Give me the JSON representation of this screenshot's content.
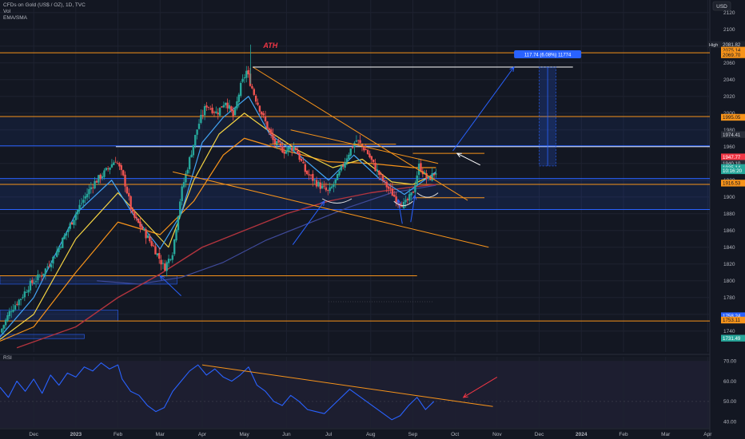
{
  "legend": {
    "symbol": "CFDs on Gold (US$ / OZ), 1D, TVC",
    "vol": "Vol",
    "indicator": "EMA/SMA"
  },
  "currency": "USD",
  "high_label": "High",
  "ath_label": "ATH",
  "rsi_label": "RSI",
  "measure_label": "117.74 (6.08%) 11774",
  "chart_data": [
    {
      "type": "candlestick",
      "title": "CFDs on Gold (US$ / OZ), 1D, TVC",
      "y_range": [
        1715,
        2135
      ],
      "y_ticks": [
        1740,
        1760,
        1780,
        1800,
        1820,
        1840,
        1860,
        1880,
        1900,
        1920,
        1940,
        1960,
        1980,
        2000,
        2020,
        2040,
        2060,
        2080,
        2100,
        2120
      ],
      "x_labels": [
        "Dec",
        "2023",
        "Feb",
        "Mar",
        "Apr",
        "May",
        "Jun",
        "Jul",
        "Aug",
        "Sep",
        "Oct",
        "Nov",
        "Dec",
        "2024",
        "Feb",
        "Mar",
        "Apr"
      ],
      "x_label_months": [
        0,
        1,
        2,
        3,
        4,
        5,
        6,
        7,
        8,
        9,
        10,
        11,
        12,
        13,
        14,
        15,
        16
      ],
      "x_range_months": [
        -0.8,
        16.05
      ],
      "grid": true,
      "price_path": [
        [
          -0.8,
          1738
        ],
        [
          -0.55,
          1765
        ],
        [
          -0.3,
          1780
        ],
        [
          -0.1,
          1795
        ],
        [
          0.2,
          1808
        ],
        [
          0.5,
          1830
        ],
        [
          0.8,
          1860
        ],
        [
          1.1,
          1890
        ],
        [
          1.4,
          1915
        ],
        [
          1.7,
          1930
        ],
        [
          1.95,
          1945
        ],
        [
          2.15,
          1920
        ],
        [
          2.35,
          1878
        ],
        [
          2.6,
          1860
        ],
        [
          2.85,
          1840
        ],
        [
          3.1,
          1815
        ],
        [
          3.3,
          1835
        ],
        [
          3.5,
          1905
        ],
        [
          3.7,
          1945
        ],
        [
          3.9,
          1985
        ],
        [
          4.1,
          2010
        ],
        [
          4.35,
          2000
        ],
        [
          4.55,
          2015
        ],
        [
          4.75,
          1995
        ],
        [
          4.9,
          2030
        ],
        [
          5.05,
          2050
        ],
        [
          5.25,
          2020
        ],
        [
          5.45,
          1995
        ],
        [
          5.7,
          1965
        ],
        [
          5.95,
          1955
        ],
        [
          6.2,
          1960
        ],
        [
          6.45,
          1930
        ],
        [
          6.75,
          1915
        ],
        [
          7.0,
          1905
        ],
        [
          7.2,
          1922
        ],
        [
          7.45,
          1950
        ],
        [
          7.65,
          1968
        ],
        [
          7.9,
          1955
        ],
        [
          8.1,
          1935
        ],
        [
          8.35,
          1915
        ],
        [
          8.6,
          1898
        ],
        [
          8.8,
          1890
        ],
        [
          9.0,
          1905
        ],
        [
          9.15,
          1938
        ],
        [
          9.35,
          1920
        ],
        [
          9.55,
          1930
        ]
      ],
      "ema_fast": [
        [
          -0.8,
          1733
        ],
        [
          0,
          1780
        ],
        [
          1,
          1880
        ],
        [
          1.85,
          1920
        ],
        [
          2.35,
          1880
        ],
        [
          3.0,
          1838
        ],
        [
          3.5,
          1880
        ],
        [
          4.0,
          1965
        ],
        [
          4.5,
          1995
        ],
        [
          5.1,
          2020
        ],
        [
          5.6,
          1975
        ],
        [
          6.3,
          1950
        ],
        [
          7.0,
          1920
        ],
        [
          7.6,
          1950
        ],
        [
          8.2,
          1922
        ],
        [
          8.8,
          1903
        ],
        [
          9.55,
          1930
        ]
      ],
      "ema_mid": [
        [
          -0.8,
          1730
        ],
        [
          0,
          1760
        ],
        [
          1,
          1850
        ],
        [
          2.0,
          1905
        ],
        [
          2.6,
          1872
        ],
        [
          3.2,
          1840
        ],
        [
          3.8,
          1920
        ],
        [
          4.4,
          1975
        ],
        [
          5.0,
          2000
        ],
        [
          5.6,
          1978
        ],
        [
          6.3,
          1955
        ],
        [
          7.1,
          1935
        ],
        [
          7.8,
          1945
        ],
        [
          8.5,
          1918
        ],
        [
          9.0,
          1915
        ],
        [
          9.55,
          1928
        ]
      ],
      "ema_slow": [
        [
          -0.8,
          1728
        ],
        [
          0,
          1745
        ],
        [
          1,
          1810
        ],
        [
          2.0,
          1870
        ],
        [
          3.0,
          1855
        ],
        [
          3.8,
          1895
        ],
        [
          4.5,
          1950
        ],
        [
          5.0,
          1970
        ],
        [
          6.0,
          1955
        ],
        [
          7.0,
          1942
        ],
        [
          8.0,
          1940
        ],
        [
          9.0,
          1935
        ],
        [
          9.55,
          1935
        ]
      ],
      "sma_200": [
        [
          -0.4,
          1720
        ],
        [
          1,
          1745
        ],
        [
          2,
          1780
        ],
        [
          3,
          1808
        ],
        [
          4,
          1840
        ],
        [
          5,
          1860
        ],
        [
          6,
          1880
        ],
        [
          7,
          1895
        ],
        [
          8,
          1905
        ],
        [
          9,
          1912
        ],
        [
          9.55,
          1915
        ]
      ],
      "sma_long": [
        [
          1.5,
          1800
        ],
        [
          2.5,
          1796
        ],
        [
          3.5,
          1804
        ],
        [
          4.5,
          1822
        ],
        [
          5.5,
          1848
        ],
        [
          6.5,
          1868
        ],
        [
          7.5,
          1888
        ],
        [
          8.5,
          1905
        ],
        [
          9.55,
          1914
        ]
      ],
      "horizontal_levels": [
        {
          "y": 2072,
          "x0": -0.8,
          "x1": 16.05,
          "color": "#f7931a"
        },
        {
          "y": 1996,
          "x0": -0.8,
          "x1": 16.05,
          "color": "#f7931a"
        },
        {
          "y": 1960,
          "x0": 1.95,
          "x1": 16.05,
          "color": "#ffffff"
        },
        {
          "y": 1952,
          "x0": 9.0,
          "x1": 10.7,
          "color": "#f7931a"
        },
        {
          "y": 1961,
          "x0": -0.8,
          "x1": 16.05,
          "color": "#2962ff"
        },
        {
          "y": 1922,
          "x0": -0.8,
          "x1": 16.05,
          "color": "#2962ff"
        },
        {
          "y": 1915,
          "x0": -0.8,
          "x1": 16.05,
          "color": "#f7931a"
        },
        {
          "y": 1899,
          "x0": 9.0,
          "x1": 10.7,
          "color": "#f7931a"
        },
        {
          "y": 1885,
          "x0": 7.0,
          "x1": 11.0,
          "color": "#f7931a"
        },
        {
          "y": 1885,
          "x0": -0.8,
          "x1": 16.05,
          "color": "#2962ff"
        },
        {
          "y": 1806,
          "x0": -0.8,
          "x1": 9.1,
          "color": "#f7931a"
        },
        {
          "y": 1752,
          "x0": -0.8,
          "x1": 16.05,
          "color": "#f7931a"
        }
      ],
      "trend_lines": [
        {
          "from": [
            5.2,
            2055
          ],
          "to": [
            10.3,
            1896
          ],
          "color": "#f7931a"
        },
        {
          "from": [
            5.2,
            2055
          ],
          "to": [
            12.8,
            2055
          ],
          "color": "#ffffff"
        },
        {
          "from": [
            3.3,
            1930
          ],
          "to": [
            10.8,
            1840
          ],
          "color": "#f7931a"
        },
        {
          "from": [
            5.6,
            1963
          ],
          "to": [
            8.6,
            1963
          ],
          "color": "#f7931a"
        },
        {
          "from": [
            6.1,
            1980
          ],
          "to": [
            9.6,
            1940
          ],
          "color": "#f7931a"
        }
      ],
      "arrows": [
        {
          "from": [
            9.95,
            1955
          ],
          "to": [
            11.4,
            2055
          ],
          "color": "#2962ff"
        },
        {
          "from": [
            10.6,
            1938
          ],
          "to": [
            10.05,
            1952
          ],
          "color": "#ffffff"
        },
        {
          "from": [
            6.15,
            1843
          ],
          "to": [
            6.9,
            1895
          ],
          "color": "#2962ff"
        },
        {
          "from": [
            3.5,
            1782
          ],
          "to": [
            3.0,
            1806
          ],
          "color": "#2962ff"
        },
        {
          "from": [
            8.75,
            1868
          ],
          "to": [
            8.65,
            1897
          ],
          "color": "#2962ff"
        },
        {
          "from": [
            8.95,
            1870
          ],
          "to": [
            9.05,
            1902
          ],
          "color": "#2962ff"
        }
      ],
      "measure_box": {
        "x0": 12.0,
        "x1": 12.4,
        "y0": 1937,
        "y1": 2055
      },
      "price_labels": [
        {
          "text": "2081.82",
          "y": 2081.82,
          "bg": "#1e222d",
          "fg": "#d1d4dc"
        },
        {
          "text": "2075.14",
          "y": 2075.14,
          "bg": "#f7931a",
          "fg": "#131722"
        },
        {
          "text": "2069.70",
          "y": 2069.7,
          "bg": "#f7931a",
          "fg": "#131722"
        },
        {
          "text": "1995.05",
          "y": 1995.05,
          "bg": "#f7931a",
          "fg": "#131722"
        },
        {
          "text": "1974.41",
          "y": 1974.41,
          "bg": "#2a2e39",
          "fg": "#d1d4dc"
        },
        {
          "text": "1947.77",
          "y": 1947.77,
          "bg": "#f23645",
          "fg": "#ffffff"
        },
        {
          "text": "1940.10",
          "y": 1940.1,
          "bg": "#2a2e39",
          "fg": "#d1d4dc"
        },
        {
          "text": "1935.14",
          "y": 1935.14,
          "bg": "#26a69a",
          "fg": "#ffffff"
        },
        {
          "text": "10:16:20",
          "y": 1931.3,
          "bg": "#26a69a",
          "fg": "#ffffff"
        },
        {
          "text": "1916.53",
          "y": 1916.53,
          "bg": "#f7931a",
          "fg": "#131722"
        },
        {
          "text": "1758.24",
          "y": 1758.24,
          "bg": "#2962ff",
          "fg": "#ffffff"
        },
        {
          "text": "1753.11",
          "y": 1753.11,
          "bg": "#f7931a",
          "fg": "#131722"
        },
        {
          "text": "1731.49",
          "y": 1731.49,
          "bg": "#26a69a",
          "fg": "#ffffff"
        }
      ]
    },
    {
      "type": "line",
      "title": "RSI",
      "y_range": [
        37,
        72
      ],
      "y_ticks": [
        40,
        50,
        60,
        70
      ],
      "ref_line": 50,
      "series": [
        {
          "values": [
            [
              -0.8,
              57
            ],
            [
              -0.6,
              52
            ],
            [
              -0.4,
              60
            ],
            [
              -0.2,
              55
            ],
            [
              0,
              61
            ],
            [
              0.2,
              54
            ],
            [
              0.4,
              63
            ],
            [
              0.6,
              58
            ],
            [
              0.8,
              64
            ],
            [
              1.0,
              62
            ],
            [
              1.2,
              67
            ],
            [
              1.4,
              65
            ],
            [
              1.6,
              69
            ],
            [
              1.8,
              66
            ],
            [
              2.0,
              68
            ],
            [
              2.1,
              61
            ],
            [
              2.3,
              55
            ],
            [
              2.5,
              53
            ],
            [
              2.7,
              48
            ],
            [
              2.9,
              45
            ],
            [
              3.1,
              47
            ],
            [
              3.3,
              55
            ],
            [
              3.5,
              60
            ],
            [
              3.7,
              65
            ],
            [
              3.9,
              68
            ],
            [
              4.1,
              63
            ],
            [
              4.3,
              66
            ],
            [
              4.5,
              62
            ],
            [
              4.7,
              60
            ],
            [
              4.9,
              63
            ],
            [
              5.1,
              67
            ],
            [
              5.3,
              58
            ],
            [
              5.5,
              55
            ],
            [
              5.7,
              50
            ],
            [
              5.9,
              48
            ],
            [
              6.1,
              53
            ],
            [
              6.3,
              50
            ],
            [
              6.5,
              46
            ],
            [
              6.7,
              45
            ],
            [
              6.9,
              44
            ],
            [
              7.1,
              48
            ],
            [
              7.3,
              52
            ],
            [
              7.5,
              56
            ],
            [
              7.7,
              53
            ],
            [
              7.9,
              50
            ],
            [
              8.1,
              47
            ],
            [
              8.3,
              44
            ],
            [
              8.5,
              41
            ],
            [
              8.7,
              43
            ],
            [
              8.9,
              48
            ],
            [
              9.1,
              52
            ],
            [
              9.3,
              46
            ],
            [
              9.5,
              50
            ]
          ]
        }
      ],
      "trend_lines": [
        {
          "from": [
            4.0,
            68
          ],
          "to": [
            10.9,
            47.5
          ],
          "color": "#f7931a"
        }
      ],
      "arrows": [
        {
          "from": [
            11.0,
            62
          ],
          "to": [
            10.2,
            52
          ],
          "color": "#f23645"
        }
      ]
    }
  ]
}
